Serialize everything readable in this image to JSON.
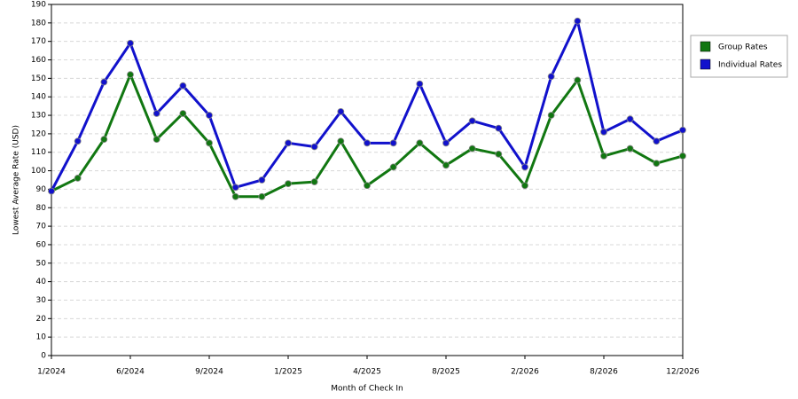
{
  "chart_data": {
    "type": "line",
    "x_label": "Month of Check In",
    "y_label": "Lowest Average Rate (USD)",
    "categories": [
      "1/2024",
      null,
      null,
      "6/2024",
      null,
      null,
      "9/2024",
      null,
      null,
      "1/2025",
      null,
      null,
      "4/2025",
      null,
      null,
      "8/2025",
      null,
      null,
      "2/2026",
      null,
      null,
      "8/2026",
      null,
      null,
      "12/2026"
    ],
    "series": [
      {
        "name": "Group Rates",
        "color": "#117711",
        "values": [
          89,
          96,
          117,
          152,
          117,
          131,
          115,
          86,
          86,
          93,
          94,
          116,
          92,
          102,
          115,
          103,
          112,
          109,
          92,
          130,
          149,
          108,
          112,
          104,
          108
        ]
      },
      {
        "name": "Individual Rates",
        "color": "#1111cc",
        "values": [
          89,
          116,
          148,
          169,
          131,
          146,
          130,
          91,
          95,
          115,
          113,
          132,
          115,
          115,
          147,
          115,
          127,
          123,
          102,
          151,
          181,
          121,
          128,
          116,
          122
        ]
      }
    ],
    "ylim": [
      0,
      190
    ],
    "yticks": [
      0,
      10,
      20,
      30,
      40,
      50,
      60,
      70,
      80,
      90,
      100,
      110,
      120,
      130,
      140,
      150,
      160,
      170,
      180,
      190
    ],
    "grid": true,
    "legend_position": "right"
  }
}
